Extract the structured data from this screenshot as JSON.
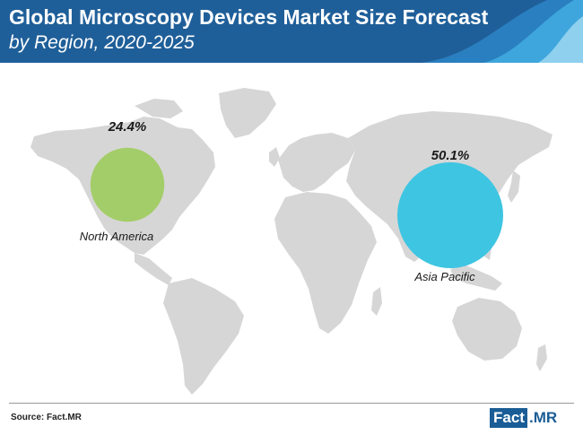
{
  "header": {
    "title": "Global Microscopy Devices Market Size Forecast",
    "subtitle": "by Region, 2020-2025"
  },
  "colors": {
    "header_bg": "#1f5f99",
    "map_fill": "#d6d6d6",
    "north_america": "#a3cd68",
    "asia_pacific": "#3ec5e2"
  },
  "chart_data": {
    "type": "bubble-map",
    "title": "Global Microscopy Devices Market Size Forecast",
    "subtitle": "by Region, 2020-2025",
    "series": [
      {
        "name": "North America",
        "value_label": "24.4%",
        "value": 24.4,
        "color": "#a3cd68"
      },
      {
        "name": "Asia Pacific",
        "value_label": "50.1%",
        "value": 50.1,
        "color": "#3ec5e2"
      }
    ]
  },
  "footer": {
    "source": "Source: Fact.MR",
    "logo_part1": "Fact",
    "logo_part2": ".MR"
  }
}
